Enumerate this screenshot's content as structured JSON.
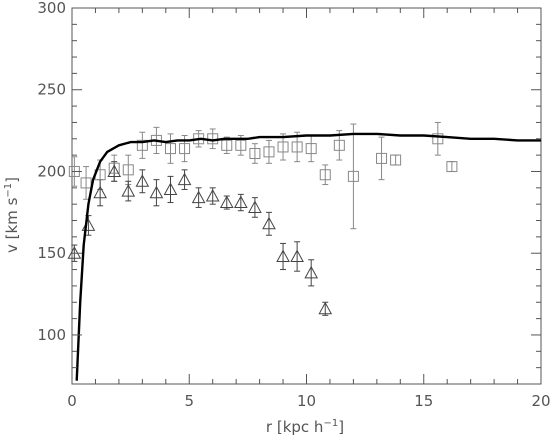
{
  "chart_data": {
    "type": "scatter",
    "xlabel": "r [kpc h",
    "xlabel_sup": "−1",
    "xlabel_end": "]",
    "ylabel": "v [km s",
    "ylabel_sup": "−1",
    "ylabel_end": "]",
    "xlim": [
      0,
      20
    ],
    "ylim": [
      70,
      300
    ],
    "xticks": [
      "0",
      "5",
      "10",
      "15",
      "20"
    ],
    "yticks": [
      "100",
      "150",
      "200",
      "250",
      "300"
    ],
    "grid": false,
    "legend": "none",
    "colors": {
      "axis": "#555555",
      "curve": "#000000",
      "squares": "#888888",
      "triangles": "#444444"
    },
    "series": [
      {
        "kind": "line",
        "x": [
          0.2,
          0.35,
          0.5,
          0.7,
          0.9,
          1.2,
          1.5,
          2.0,
          2.5,
          3.0,
          3.5,
          4.0,
          4.5,
          5.0,
          5.5,
          6.0,
          6.5,
          7.0,
          7.5,
          8.0,
          9.0,
          10.0,
          11.0,
          12.0,
          13.0,
          14.0,
          15.0,
          16.0,
          17.0,
          18.0,
          19.0,
          20.0
        ],
        "y": [
          72,
          120,
          155,
          180,
          195,
          206,
          212,
          216,
          218,
          218,
          219,
          218,
          219,
          219,
          220,
          219,
          220,
          220,
          220,
          221,
          221,
          222,
          222,
          223,
          223,
          222,
          222,
          221,
          220,
          220,
          219,
          219
        ]
      },
      {
        "kind": "squares",
        "x": [
          0.1,
          0.6,
          1.2,
          1.8,
          2.4,
          3.0,
          3.6,
          4.2,
          4.8,
          5.4,
          6.0,
          6.6,
          7.2,
          7.8,
          8.4,
          9.0,
          9.6,
          10.2,
          10.8,
          11.4,
          12.0,
          13.2,
          13.8,
          15.6,
          16.2
        ],
        "y": [
          200,
          193,
          198,
          202,
          201,
          216,
          219,
          214,
          214,
          220,
          220,
          216,
          216,
          211,
          212,
          215,
          215,
          214,
          198,
          216,
          197,
          208,
          207,
          220,
          203
        ],
        "err": [
          9,
          10,
          9,
          8,
          9,
          8,
          8,
          9,
          8,
          5,
          6,
          5,
          6,
          6,
          7,
          8,
          9,
          8,
          6,
          9,
          32,
          13,
          3,
          10,
          3
        ]
      },
      {
        "kind": "triangles",
        "x": [
          0.1,
          0.7,
          1.2,
          1.8,
          2.4,
          3.0,
          3.6,
          4.2,
          4.8,
          5.4,
          6.0,
          6.6,
          7.2,
          7.8,
          8.4,
          9.0,
          9.6,
          10.2,
          10.8
        ],
        "y": [
          150,
          167,
          187,
          200,
          188,
          194,
          187,
          189,
          195,
          184,
          185,
          181,
          181,
          178,
          168,
          148,
          148,
          138,
          116
        ],
        "err": [
          5,
          6,
          8,
          6,
          6,
          7,
          8,
          8,
          6,
          6,
          5,
          4,
          5,
          6,
          7,
          8,
          9,
          8,
          4
        ]
      }
    ]
  }
}
